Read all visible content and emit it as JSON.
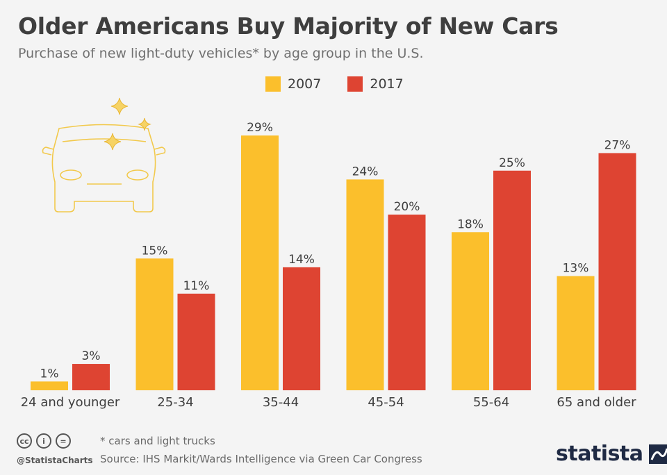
{
  "title": "Older Americans Buy Majority of New Cars",
  "subtitle": "Purchase of new light-duty vehicles* by age group in the U.S.",
  "colors": {
    "s2007": "#fbbf2c",
    "s2017": "#de4432",
    "text": "#3e3e3e",
    "icon": "#f2c94c"
  },
  "chart_data": {
    "type": "bar",
    "categories": [
      "24 and younger",
      "25-34",
      "35-44",
      "45-54",
      "55-64",
      "65 and older"
    ],
    "series": [
      {
        "name": "2007",
        "values": [
          1,
          15,
          29,
          24,
          18,
          13
        ],
        "labels": [
          "1%",
          "15%",
          "29%",
          "24%",
          "18%",
          "13%"
        ]
      },
      {
        "name": "2017",
        "values": [
          3,
          11,
          14,
          20,
          25,
          27
        ],
        "labels": [
          "3%",
          "11%",
          "14%",
          "20%",
          "25%",
          "27%"
        ]
      }
    ],
    "ylim": [
      0,
      30
    ],
    "grid": false,
    "legend_position": "top"
  },
  "footer": {
    "handle": "@StatistaCharts",
    "note": "* cars and light trucks",
    "source": "Source: IHS Markit/Wards Intelligence via Green Car Congress",
    "brand": "statista",
    "license_icons": [
      "cc-icon",
      "by-icon",
      "nd-icon"
    ]
  }
}
